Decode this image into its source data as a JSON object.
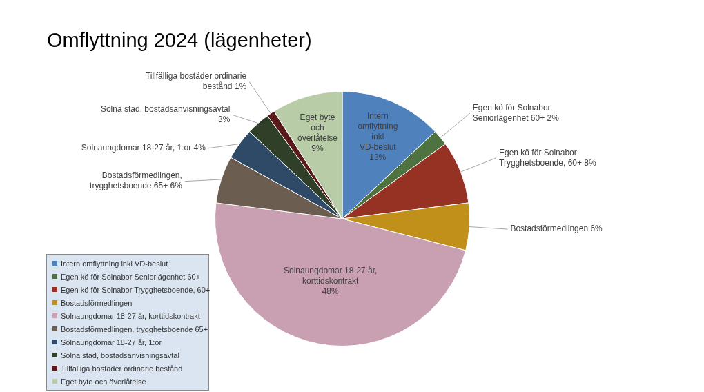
{
  "chart_data": {
    "type": "pie",
    "title": "Omflyttning 2024 (lägenheter)",
    "categories": [
      "Intern omflyttning inkl VD-beslut",
      "Egen kö för Solnabor Seniorlägenhet  60+",
      "Egen kö för Solnabor Trygghetsboende, 60+",
      "Bostadsförmedlingen",
      "Solnaungdomar 18-27 år, korttidskontrakt",
      "Bostadsförmedlingen, trygghetsboende 65+",
      "Solnaungdomar 18-27 år, 1:or",
      "Solna stad, bostadsanvisningsavtal",
      "Tillfälliga bostäder ordinarie bestånd",
      "Eget byte och överlåtelse"
    ],
    "values": [
      13,
      2,
      8,
      6,
      48,
      6,
      4,
      3,
      1,
      9
    ],
    "value_labels": [
      "13%",
      "2%",
      "8%",
      "6%",
      "48%",
      "6%",
      "4%",
      "3%",
      "1%",
      "9%"
    ],
    "colors": [
      "#4f81bd",
      "#4e7341",
      "#963224",
      "#c0901a",
      "#c9a0b2",
      "#6b5d50",
      "#2f4a66",
      "#2f3f28",
      "#5a1a1a",
      "#b9cca8"
    ],
    "legend": "bottom left"
  }
}
